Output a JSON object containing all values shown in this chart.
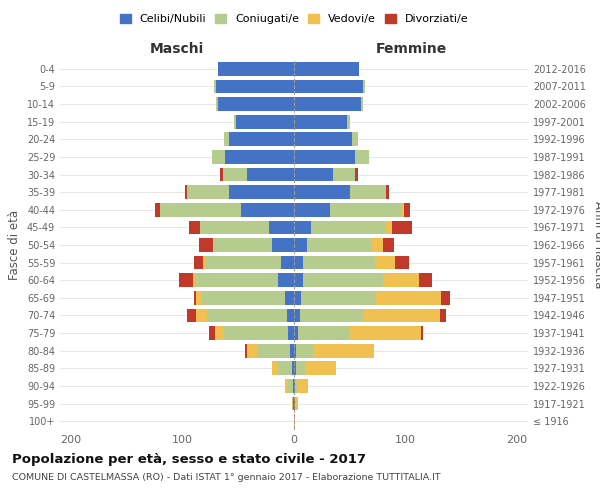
{
  "age_groups": [
    "100+",
    "95-99",
    "90-94",
    "85-89",
    "80-84",
    "75-79",
    "70-74",
    "65-69",
    "60-64",
    "55-59",
    "50-54",
    "45-49",
    "40-44",
    "35-39",
    "30-34",
    "25-29",
    "20-24",
    "15-19",
    "10-14",
    "5-9",
    "0-4"
  ],
  "birth_years": [
    "≤ 1916",
    "1917-1921",
    "1922-1926",
    "1927-1931",
    "1932-1936",
    "1937-1941",
    "1942-1946",
    "1947-1951",
    "1952-1956",
    "1957-1961",
    "1962-1966",
    "1967-1971",
    "1972-1976",
    "1977-1981",
    "1982-1986",
    "1987-1991",
    "1992-1996",
    "1997-2001",
    "2002-2006",
    "2007-2011",
    "2012-2016"
  ],
  "males": {
    "celibi": [
      0,
      1,
      1,
      2,
      4,
      5,
      6,
      8,
      14,
      12,
      20,
      22,
      48,
      58,
      42,
      62,
      58,
      52,
      68,
      70,
      68
    ],
    "coniugati": [
      0,
      0,
      4,
      12,
      28,
      58,
      72,
      75,
      75,
      68,
      52,
      62,
      72,
      38,
      22,
      12,
      5,
      2,
      2,
      2,
      0
    ],
    "vedovi": [
      0,
      1,
      3,
      6,
      10,
      8,
      10,
      5,
      2,
      2,
      1,
      0,
      0,
      0,
      0,
      0,
      0,
      0,
      0,
      0,
      0
    ],
    "divorziati": [
      0,
      0,
      0,
      0,
      2,
      5,
      8,
      2,
      12,
      8,
      12,
      10,
      5,
      2,
      2,
      0,
      0,
      0,
      0,
      0,
      0
    ]
  },
  "females": {
    "nubili": [
      0,
      1,
      1,
      2,
      2,
      4,
      5,
      6,
      8,
      8,
      12,
      15,
      32,
      50,
      35,
      55,
      52,
      48,
      60,
      62,
      58
    ],
    "coniugate": [
      0,
      0,
      2,
      8,
      15,
      45,
      58,
      68,
      72,
      65,
      58,
      68,
      65,
      32,
      20,
      12,
      5,
      2,
      2,
      2,
      0
    ],
    "vedove": [
      1,
      3,
      10,
      28,
      55,
      65,
      68,
      58,
      32,
      18,
      10,
      5,
      2,
      1,
      0,
      0,
      0,
      0,
      0,
      0,
      0
    ],
    "divorziate": [
      0,
      0,
      0,
      0,
      0,
      2,
      5,
      8,
      12,
      12,
      10,
      18,
      5,
      2,
      2,
      0,
      0,
      0,
      0,
      0,
      0
    ]
  },
  "color_celibi": "#4472C4",
  "color_coniugati": "#B5CC8E",
  "color_vedovi": "#F0C050",
  "color_divorziati": "#C0392B",
  "xlim": 210,
  "title": "Popolazione per età, sesso e stato civile - 2017",
  "subtitle": "COMUNE DI CASTELMASSA (RO) - Dati ISTAT 1° gennaio 2017 - Elaborazione TUTTITALIA.IT",
  "xlabel_left": "Maschi",
  "xlabel_right": "Femmine",
  "ylabel_left": "Fasce di età",
  "ylabel_right": "Anni di nascita"
}
